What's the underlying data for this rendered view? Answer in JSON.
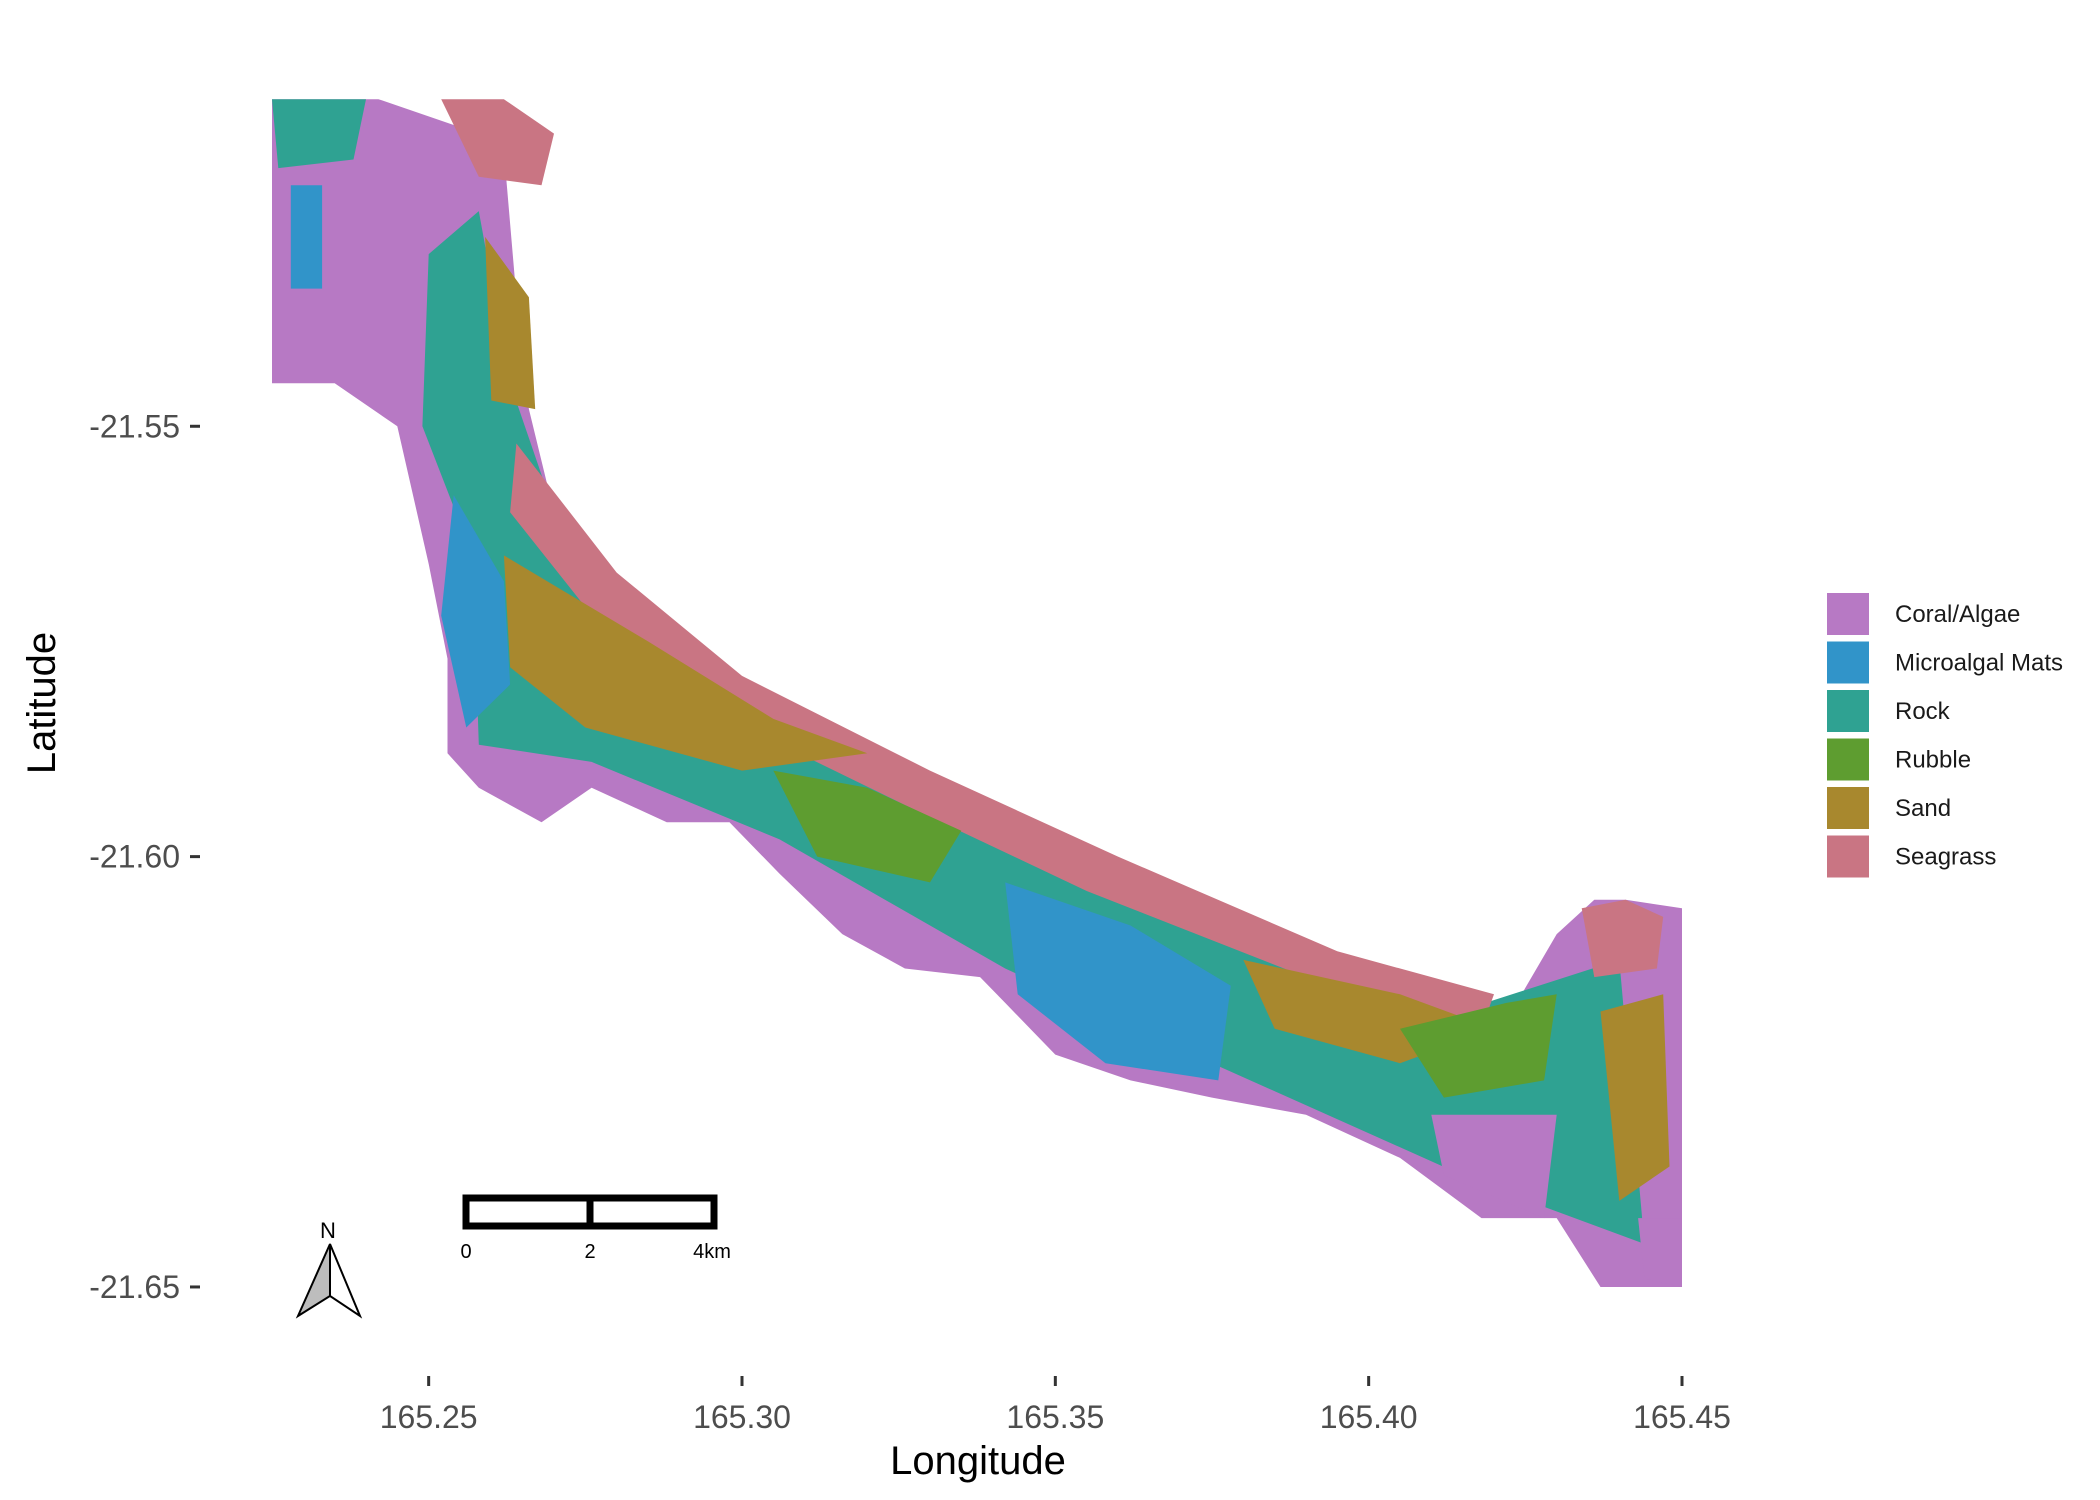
{
  "chart_data": {
    "type": "map",
    "xlabel": "Longitude",
    "ylabel": "Latitude",
    "xlim": [
      165.225,
      165.45
    ],
    "ylim": [
      -21.655,
      -21.51
    ],
    "x_ticks": [
      {
        "value": 165.25,
        "label": "165.25"
      },
      {
        "value": 165.3,
        "label": "165.30"
      },
      {
        "value": 165.35,
        "label": "165.35"
      },
      {
        "value": 165.4,
        "label": "165.40"
      },
      {
        "value": 165.45,
        "label": "165.45"
      }
    ],
    "y_ticks": [
      {
        "value": -21.55,
        "label": "-21.55"
      },
      {
        "value": -21.6,
        "label": "-21.60"
      },
      {
        "value": -21.65,
        "label": "-21.65"
      }
    ],
    "grid": false,
    "legend_position": "right",
    "legend": [
      {
        "name": "Coral/Algae",
        "color": "#b779c4"
      },
      {
        "name": "Microalgal Mats",
        "color": "#3194c9"
      },
      {
        "name": "Rock",
        "color": "#2fa292"
      },
      {
        "name": "Rubble",
        "color": "#5e9d30"
      },
      {
        "name": "Sand",
        "color": "#a8882e"
      },
      {
        "name": "Seagrass",
        "color": "#c97583"
      }
    ],
    "reef_outline": [
      [
        165.225,
        -21.512
      ],
      [
        165.242,
        -21.512
      ],
      [
        165.254,
        -21.515
      ],
      [
        165.262,
        -21.518
      ],
      [
        165.264,
        -21.535
      ],
      [
        165.266,
        -21.548
      ],
      [
        165.27,
        -21.56
      ],
      [
        165.278,
        -21.568
      ],
      [
        165.292,
        -21.578
      ],
      [
        165.305,
        -21.584
      ],
      [
        165.32,
        -21.588
      ],
      [
        165.334,
        -21.594
      ],
      [
        165.348,
        -21.598
      ],
      [
        165.362,
        -21.602
      ],
      [
        165.378,
        -21.608
      ],
      [
        165.395,
        -21.614
      ],
      [
        165.41,
        -21.617
      ],
      [
        165.422,
        -21.619
      ],
      [
        165.43,
        -21.609
      ],
      [
        165.436,
        -21.605
      ],
      [
        165.441,
        -21.605
      ],
      [
        165.45,
        -21.606
      ],
      [
        165.45,
        -21.65
      ],
      [
        165.437,
        -21.65
      ],
      [
        165.43,
        -21.642
      ],
      [
        165.418,
        -21.642
      ],
      [
        165.405,
        -21.635
      ],
      [
        165.39,
        -21.63
      ],
      [
        165.375,
        -21.628
      ],
      [
        165.362,
        -21.626
      ],
      [
        165.35,
        -21.623
      ],
      [
        165.342,
        -21.617
      ],
      [
        165.338,
        -21.614
      ],
      [
        165.326,
        -21.613
      ],
      [
        165.316,
        -21.609
      ],
      [
        165.306,
        -21.602
      ],
      [
        165.298,
        -21.596
      ],
      [
        165.288,
        -21.596
      ],
      [
        165.276,
        -21.592
      ],
      [
        165.268,
        -21.596
      ],
      [
        165.258,
        -21.592
      ],
      [
        165.253,
        -21.588
      ],
      [
        165.253,
        -21.577
      ],
      [
        165.25,
        -21.566
      ],
      [
        165.245,
        -21.55
      ],
      [
        165.235,
        -21.545
      ],
      [
        165.225,
        -21.545
      ]
    ],
    "inner_outline": [
      [
        165.258,
        -21.525
      ],
      [
        165.263,
        -21.545
      ],
      [
        165.271,
        -21.562
      ],
      [
        165.29,
        -21.577
      ],
      [
        165.32,
        -21.589
      ],
      [
        165.348,
        -21.6
      ],
      [
        165.378,
        -21.61
      ],
      [
        165.41,
        -21.619
      ],
      [
        165.44,
        -21.612
      ],
      [
        165.444,
        -21.645
      ],
      [
        165.418,
        -21.638
      ],
      [
        165.375,
        -21.624
      ],
      [
        165.342,
        -21.613
      ],
      [
        165.306,
        -21.598
      ],
      [
        165.276,
        -21.589
      ],
      [
        165.258,
        -21.587
      ],
      [
        165.257,
        -21.565
      ],
      [
        165.249,
        -21.55
      ],
      [
        165.25,
        -21.53
      ]
    ],
    "zones": [
      {
        "class": "Seagrass",
        "coords": [
          [
            165.252,
            -21.512
          ],
          [
            165.262,
            -21.512
          ],
          [
            165.27,
            -21.516
          ],
          [
            165.268,
            -21.522
          ],
          [
            165.258,
            -21.521
          ]
        ]
      },
      {
        "class": "Seagrass",
        "coords": [
          [
            165.264,
            -21.552
          ],
          [
            165.28,
            -21.567
          ],
          [
            165.3,
            -21.579
          ],
          [
            165.33,
            -21.59
          ],
          [
            165.36,
            -21.6
          ],
          [
            165.395,
            -21.611
          ],
          [
            165.42,
            -21.616
          ],
          [
            165.418,
            -21.62
          ],
          [
            165.39,
            -21.614
          ],
          [
            165.355,
            -21.604
          ],
          [
            165.326,
            -21.594
          ],
          [
            165.295,
            -21.583
          ],
          [
            165.275,
            -21.571
          ],
          [
            165.263,
            -21.56
          ]
        ]
      },
      {
        "class": "Seagrass",
        "coords": [
          [
            165.434,
            -21.606
          ],
          [
            165.441,
            -21.605
          ],
          [
            165.447,
            -21.607
          ],
          [
            165.446,
            -21.613
          ],
          [
            165.436,
            -21.614
          ]
        ]
      },
      {
        "class": "Microalgal Mats",
        "coords": [
          [
            165.254,
            -21.558
          ],
          [
            165.262,
            -21.568
          ],
          [
            165.263,
            -21.58
          ],
          [
            165.256,
            -21.585
          ],
          [
            165.252,
            -21.572
          ]
        ]
      },
      {
        "class": "Microalgal Mats",
        "coords": [
          [
            165.342,
            -21.603
          ],
          [
            165.362,
            -21.608
          ],
          [
            165.378,
            -21.615
          ],
          [
            165.376,
            -21.626
          ],
          [
            165.358,
            -21.624
          ],
          [
            165.344,
            -21.616
          ]
        ]
      },
      {
        "class": "Microalgal Mats",
        "coords": [
          [
            165.228,
            -21.522
          ],
          [
            165.233,
            -21.522
          ],
          [
            165.233,
            -21.534
          ],
          [
            165.228,
            -21.534
          ]
        ]
      },
      {
        "class": "Sand",
        "coords": [
          [
            165.262,
            -21.565
          ],
          [
            165.285,
            -21.575
          ],
          [
            165.305,
            -21.584
          ],
          [
            165.32,
            -21.588
          ],
          [
            165.3,
            -21.59
          ],
          [
            165.275,
            -21.585
          ],
          [
            165.263,
            -21.578
          ]
        ]
      },
      {
        "class": "Sand",
        "coords": [
          [
            165.38,
            -21.612
          ],
          [
            165.405,
            -21.616
          ],
          [
            165.42,
            -21.62
          ],
          [
            165.405,
            -21.624
          ],
          [
            165.385,
            -21.62
          ]
        ]
      },
      {
        "class": "Sand",
        "coords": [
          [
            165.259,
            -21.528
          ],
          [
            165.266,
            -21.535
          ],
          [
            165.267,
            -21.548
          ],
          [
            165.26,
            -21.547
          ]
        ]
      },
      {
        "class": "Sand",
        "coords": [
          [
            165.437,
            -21.618
          ],
          [
            165.447,
            -21.616
          ],
          [
            165.448,
            -21.636
          ],
          [
            165.44,
            -21.64
          ]
        ]
      },
      {
        "class": "Rubble",
        "coords": [
          [
            165.305,
            -21.59
          ],
          [
            165.32,
            -21.592
          ],
          [
            165.335,
            -21.597
          ],
          [
            165.33,
            -21.603
          ],
          [
            165.312,
            -21.6
          ]
        ]
      },
      {
        "class": "Rubble",
        "coords": [
          [
            165.405,
            -21.62
          ],
          [
            165.422,
            -21.617
          ],
          [
            165.43,
            -21.616
          ],
          [
            165.428,
            -21.626
          ],
          [
            165.412,
            -21.628
          ]
        ]
      },
      {
        "class": "Rock",
        "coords": [
          [
            165.225,
            -21.512
          ],
          [
            165.24,
            -21.512
          ],
          [
            165.238,
            -21.519
          ],
          [
            165.226,
            -21.52
          ]
        ]
      },
      {
        "class": "Coral/Algae",
        "coords": [
          [
            165.41,
            -21.63
          ],
          [
            165.43,
            -21.63
          ],
          [
            165.428,
            -21.642
          ],
          [
            165.412,
            -21.637
          ]
        ]
      },
      {
        "class": "Coral/Algae",
        "coords": [
          [
            165.443,
            -21.642
          ],
          [
            165.45,
            -21.642
          ],
          [
            165.45,
            -21.65
          ],
          [
            165.444,
            -21.649
          ]
        ]
      }
    ]
  },
  "scale_bar": {
    "labels": [
      "0",
      "2",
      "4km"
    ]
  },
  "north_arrow": {
    "label": "N"
  }
}
